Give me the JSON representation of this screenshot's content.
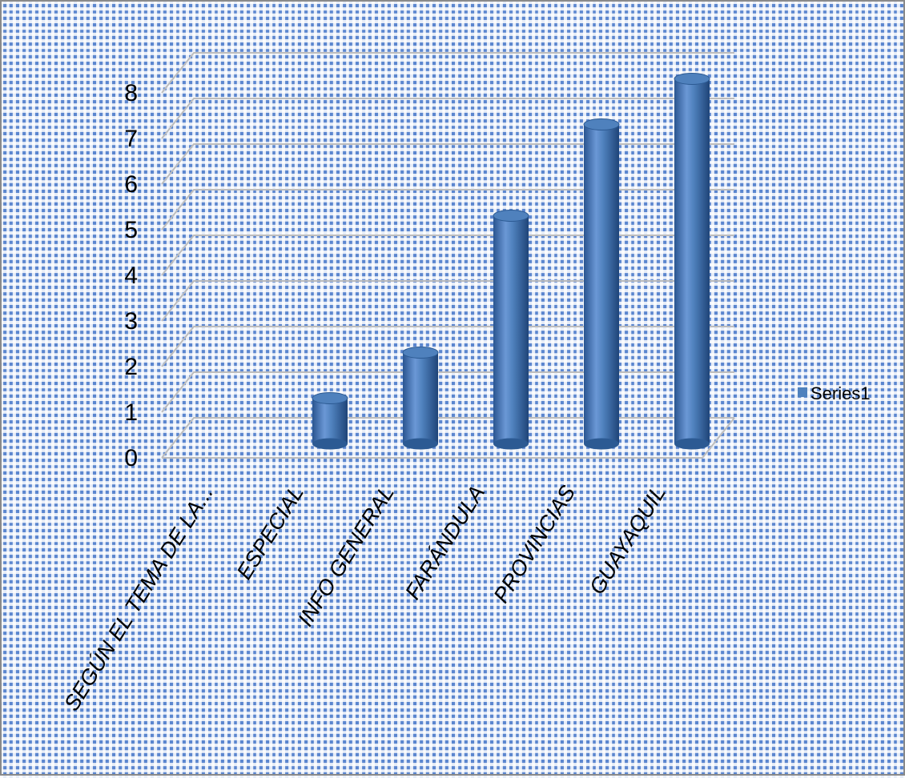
{
  "chart_data": {
    "type": "bar",
    "style": "3d-cylinder",
    "categories": [
      "SEGÚN EL TEMA DE LA...",
      "ESPECIAL",
      "INFO GENERAL",
      "FARÁNDULA",
      "PROVINCIAS",
      "GUAYAQUIL"
    ],
    "series": [
      {
        "name": "Series1",
        "values": [
          0,
          1,
          2,
          5,
          7,
          8
        ]
      }
    ],
    "yticks": [
      "0",
      "1",
      "2",
      "3",
      "4",
      "5",
      "6",
      "7",
      "8"
    ],
    "ylim": [
      0,
      8
    ],
    "grid": true,
    "legend": "right",
    "colors": {
      "bar": "#4f81bd",
      "bar_dark": "#2c5a93",
      "bar_light": "#8db0df",
      "grid": "#bdbdbd",
      "text": "#000000"
    }
  }
}
